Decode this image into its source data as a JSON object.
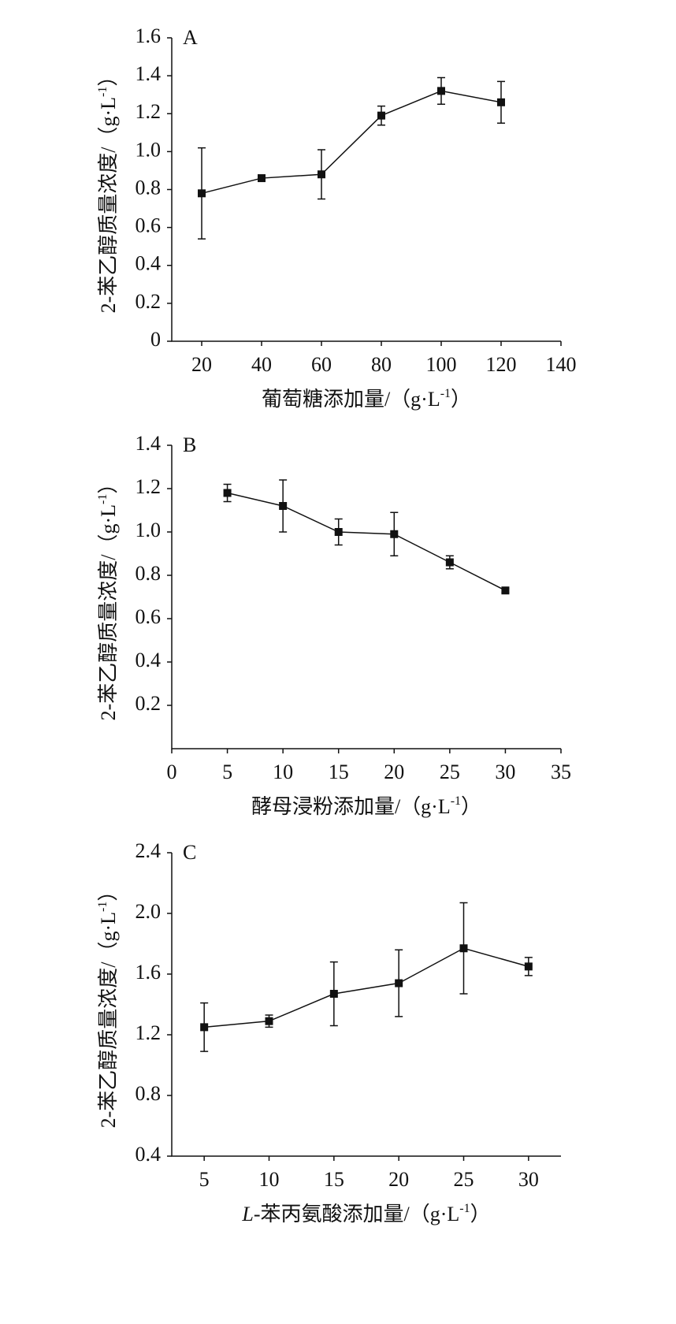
{
  "chart_data": [
    {
      "type": "line",
      "label": "A",
      "xlabel": [
        "葡萄糖添加量/（g·L",
        "-1",
        "）"
      ],
      "xlabel_styles": [
        "normal",
        "super",
        "normal"
      ],
      "ylabel": [
        "2-苯乙醇质量浓度/（g·L",
        "-1",
        "）"
      ],
      "ylabel_styles": [
        "normal",
        "super",
        "normal"
      ],
      "x": [
        20,
        40,
        60,
        80,
        100,
        120
      ],
      "series": [
        {
          "color": "#111111",
          "values": [
            0.78,
            0.86,
            0.88,
            1.19,
            1.32,
            1.26
          ],
          "errors": [
            0.24,
            0.01,
            0.13,
            0.05,
            0.07,
            0.11
          ]
        }
      ],
      "xlim": [
        10,
        140
      ],
      "xticks": [
        20,
        40,
        60,
        80,
        100,
        120,
        140
      ],
      "ylim": [
        0,
        1.6
      ],
      "yticks": [
        0,
        {
          "value": 0.2,
          "label": "0.2"
        },
        {
          "value": 0.4,
          "label": "0.4"
        },
        {
          "value": 0.6,
          "label": "0.6"
        },
        {
          "value": 0.8,
          "label": "0.8"
        },
        {
          "value": 1.0,
          "label": "1.0"
        },
        {
          "value": 1.2,
          "label": "1.2"
        },
        {
          "value": 1.4,
          "label": "1.4"
        },
        {
          "value": 1.6,
          "label": "1.6"
        }
      ]
    },
    {
      "type": "line",
      "label": "B",
      "xlabel": [
        "酵母浸粉添加量/（g·L",
        "-1",
        "）"
      ],
      "xlabel_styles": [
        "normal",
        "super",
        "normal"
      ],
      "ylabel": [
        "2-苯乙醇质量浓度/（g·L",
        "-1",
        "）"
      ],
      "ylabel_styles": [
        "normal",
        "super",
        "normal"
      ],
      "x": [
        5,
        10,
        15,
        20,
        25,
        30
      ],
      "series": [
        {
          "color": "#111111",
          "values": [
            1.18,
            1.12,
            1.0,
            0.99,
            0.86,
            0.73
          ],
          "errors": [
            0.04,
            0.12,
            0.06,
            0.1,
            0.03,
            0.01
          ]
        }
      ],
      "xlim": [
        0,
        35
      ],
      "xticks": [
        0,
        5,
        10,
        15,
        20,
        25,
        30,
        35
      ],
      "ylim": [
        0,
        1.4
      ],
      "yticks": [
        {
          "value": 0.2,
          "label": "0.2"
        },
        {
          "value": 0.4,
          "label": "0.4"
        },
        {
          "value": 0.6,
          "label": "0.6"
        },
        {
          "value": 0.8,
          "label": "0.8"
        },
        {
          "value": 1.0,
          "label": "1.0"
        },
        {
          "value": 1.2,
          "label": "1.2"
        },
        {
          "value": 1.4,
          "label": "1.4"
        }
      ]
    },
    {
      "type": "line",
      "label": "C",
      "xlabel": [
        "L",
        "-苯丙氨酸添加量/（g·L",
        "-1",
        "）"
      ],
      "xlabel_styles": [
        "italic",
        "normal",
        "super",
        "normal"
      ],
      "ylabel": [
        "2-苯乙醇质量浓度/（g·L",
        "-1",
        "）"
      ],
      "ylabel_styles": [
        "normal",
        "super",
        "normal"
      ],
      "x": [
        5,
        10,
        15,
        20,
        25,
        30
      ],
      "series": [
        {
          "color": "#111111",
          "values": [
            1.25,
            1.29,
            1.47,
            1.54,
            1.77,
            1.65
          ],
          "errors": [
            0.16,
            0.04,
            0.21,
            0.22,
            0.3,
            0.06
          ]
        }
      ],
      "xlim": [
        2.5,
        32.5
      ],
      "xticks": [
        5,
        10,
        15,
        20,
        25,
        30
      ],
      "ylim": [
        0.4,
        2.4
      ],
      "yticks": [
        {
          "value": 0.4,
          "label": "0.4"
        },
        {
          "value": 0.8,
          "label": "0.8"
        },
        {
          "value": 1.2,
          "label": "1.2"
        },
        {
          "value": 1.6,
          "label": "1.6"
        },
        {
          "value": 2.0,
          "label": "2.0"
        },
        {
          "value": 2.4,
          "label": "2.4"
        }
      ]
    }
  ]
}
